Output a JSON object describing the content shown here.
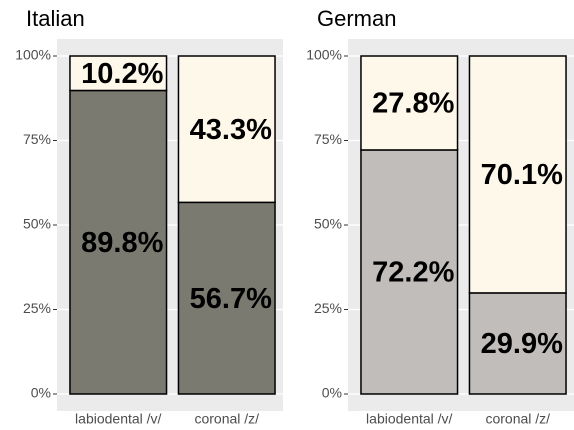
{
  "chart_data": [
    {
      "type": "bar",
      "stacked": true,
      "title": "Italian",
      "categories": [
        "labiodental /v/",
        "coronal /z/"
      ],
      "series": [
        {
          "color": "#7a7a70",
          "values": [
            89.8,
            56.7
          ],
          "value_labels": [
            "89.8%",
            "56.7%"
          ]
        },
        {
          "color": "#fdf8ea",
          "values": [
            10.2,
            43.3
          ],
          "value_labels": [
            "10.2%",
            "43.3%"
          ]
        }
      ],
      "ylim": [
        0,
        100
      ],
      "yticks": [
        {
          "value": 0,
          "label": "0%"
        },
        {
          "value": 25,
          "label": "25%"
        },
        {
          "value": 50,
          "label": "50%"
        },
        {
          "value": 75,
          "label": "75%"
        },
        {
          "value": 100,
          "label": "100%"
        }
      ],
      "grid": true
    },
    {
      "type": "bar",
      "stacked": true,
      "title": "German",
      "categories": [
        "labiodental /v/",
        "coronal /z/"
      ],
      "series": [
        {
          "color": "#c0bdbb",
          "values": [
            72.2,
            29.9
          ],
          "value_labels": [
            "72.2%",
            "29.9%"
          ]
        },
        {
          "color": "#fdf8ea",
          "values": [
            27.8,
            70.1
          ],
          "value_labels": [
            "27.8%",
            "70.1%"
          ]
        }
      ],
      "ylim": [
        0,
        100
      ],
      "yticks": [
        {
          "value": 0,
          "label": "0%"
        },
        {
          "value": 25,
          "label": "25%"
        },
        {
          "value": 50,
          "label": "50%"
        },
        {
          "value": 75,
          "label": "75%"
        },
        {
          "value": 100,
          "label": "100%"
        }
      ],
      "grid": true
    }
  ]
}
